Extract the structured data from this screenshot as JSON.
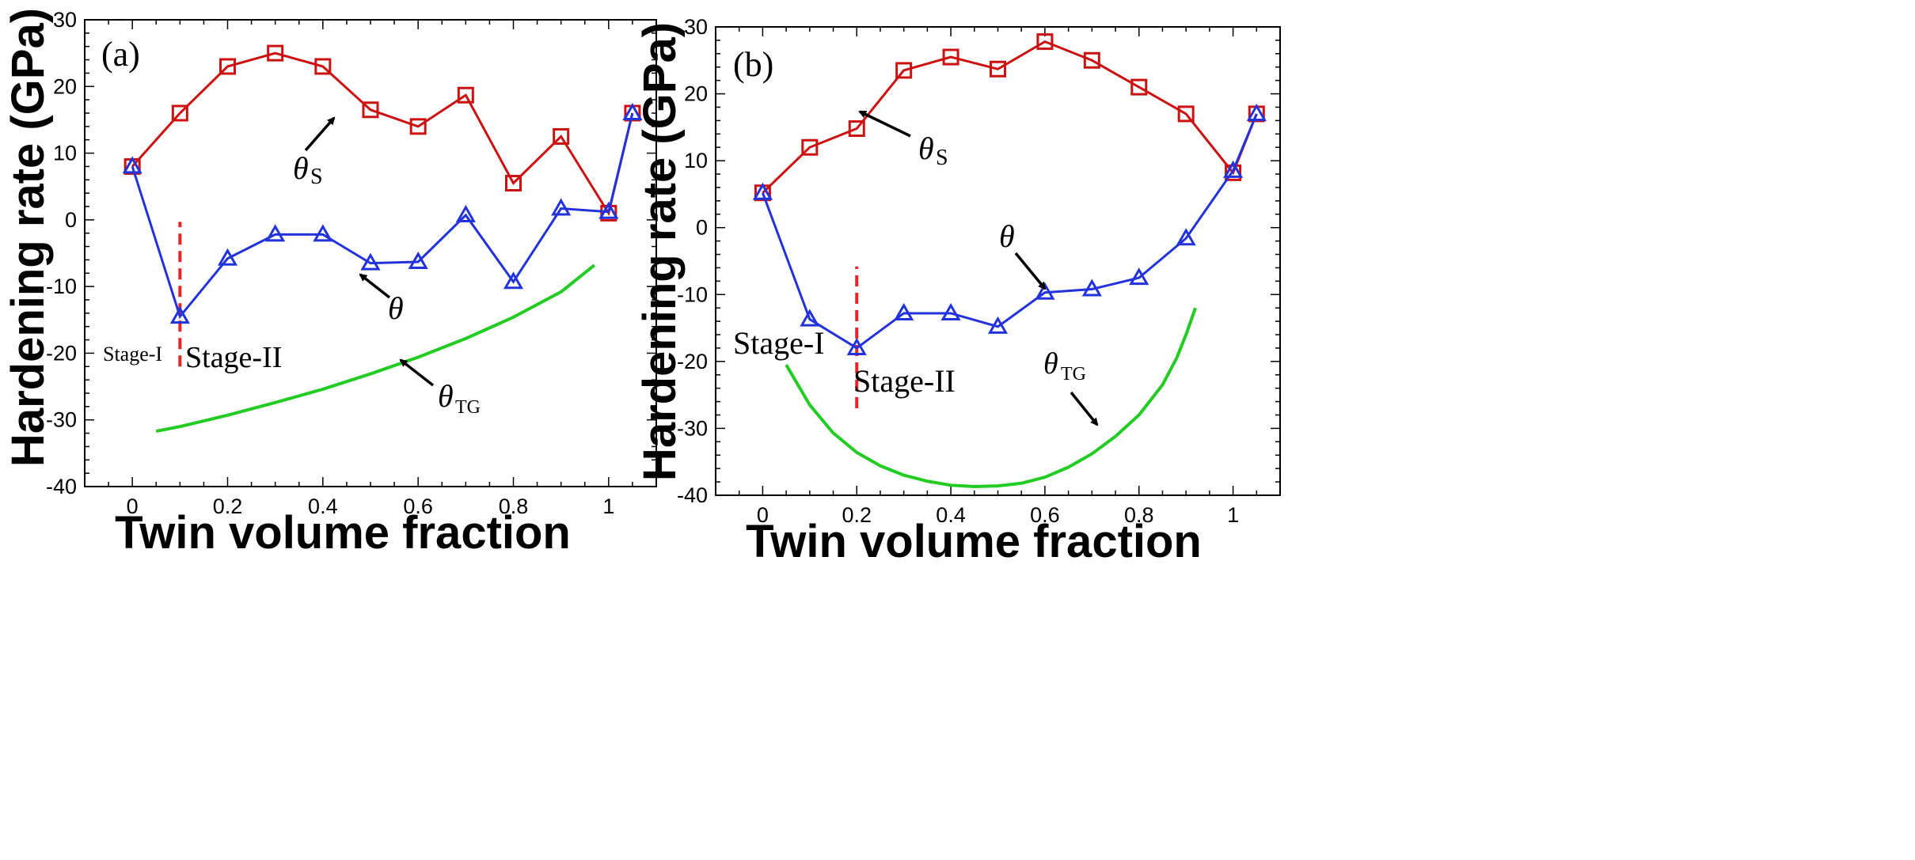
{
  "chart_data": [
    {
      "type": "line",
      "panel_label": "(a)",
      "xlabel": "Twin volume  fraction",
      "ylabel": "Hardening rate (GPa)",
      "xlim": [
        -0.1,
        1.1
      ],
      "ylim": [
        -40,
        30
      ],
      "x_ticks": [
        0,
        0.2,
        0.4,
        0.6,
        0.8,
        1
      ],
      "x_tick_labels": [
        "0",
        "0.2",
        "0.4",
        "0.6",
        "0.8",
        "1"
      ],
      "y_ticks": [
        -40,
        -30,
        -20,
        -10,
        0,
        10,
        20,
        30
      ],
      "y_tick_labels": [
        "-40",
        "-30",
        "-20",
        "-10",
        "0",
        "10",
        "20",
        "30"
      ],
      "series": [
        {
          "name": "θS",
          "color": "#cc1111",
          "marker": "square",
          "x": [
            0,
            0.1,
            0.2,
            0.3,
            0.4,
            0.5,
            0.6,
            0.7,
            0.8,
            0.9,
            1.0,
            1.05
          ],
          "y": [
            8,
            16,
            23,
            25,
            23,
            16.5,
            14,
            18.7,
            5.5,
            12.5,
            1,
            16
          ]
        },
        {
          "name": "θ",
          "color": "#2233dd",
          "marker": "triangle",
          "x": [
            0,
            0.1,
            0.2,
            0.3,
            0.4,
            0.5,
            0.6,
            0.7,
            0.8,
            0.9,
            1.0,
            1.05
          ],
          "y": [
            8,
            -14.5,
            -5.8,
            -2.2,
            -2.2,
            -6.5,
            -6.3,
            0.7,
            -9.3,
            1.7,
            1.2,
            16
          ]
        },
        {
          "name": "θTG",
          "color": "#22cc22",
          "marker": "none",
          "x": [
            0.05,
            0.1,
            0.2,
            0.3,
            0.4,
            0.5,
            0.6,
            0.7,
            0.8,
            0.9,
            0.97
          ],
          "y": [
            -31.7,
            -31,
            -29.3,
            -27.4,
            -25.4,
            -23.1,
            -20.6,
            -17.8,
            -14.6,
            -10.8,
            -6.8
          ]
        }
      ],
      "stage_divider": {
        "x": 0.1,
        "y_range": [
          -22,
          -0.3
        ],
        "color": "#ee2222"
      },
      "annotations": {
        "theta_s": {
          "text": "θ",
          "sub": "S"
        },
        "theta": {
          "text": "θ"
        },
        "theta_tg": {
          "text": "θ",
          "sub": "TG"
        },
        "stage_1": "Stage-I",
        "stage_2": "Stage-II"
      }
    },
    {
      "type": "line",
      "panel_label": "(b)",
      "xlabel": "Twin volume fraction",
      "ylabel": "Hardening rate (GPa)",
      "xlim": [
        -0.1,
        1.1
      ],
      "ylim": [
        -40,
        30
      ],
      "x_ticks": [
        0,
        0.2,
        0.4,
        0.6,
        0.8,
        1
      ],
      "x_tick_labels": [
        "0",
        "0.2",
        "0.4",
        "0.6",
        "0.8",
        "1"
      ],
      "y_ticks": [
        -40,
        -30,
        -20,
        -10,
        0,
        10,
        20,
        30
      ],
      "y_tick_labels": [
        "-40",
        "-30",
        "-20",
        "-10",
        "0",
        "10",
        "20",
        "30"
      ],
      "series": [
        {
          "name": "θS",
          "color": "#cc1111",
          "marker": "square",
          "x": [
            0,
            0.1,
            0.2,
            0.3,
            0.4,
            0.5,
            0.6,
            0.7,
            0.8,
            0.9,
            1.0,
            1.05
          ],
          "y": [
            5.2,
            12,
            14.8,
            23.5,
            25.5,
            23.7,
            27.8,
            25,
            21,
            17,
            8.2,
            17
          ]
        },
        {
          "name": "θ",
          "color": "#2233dd",
          "marker": "triangle",
          "x": [
            0,
            0.1,
            0.2,
            0.3,
            0.4,
            0.5,
            0.6,
            0.7,
            0.8,
            0.9,
            1.0,
            1.05
          ],
          "y": [
            5.2,
            -13.7,
            -18,
            -12.8,
            -12.8,
            -14.8,
            -9.7,
            -9.2,
            -7.5,
            -1.6,
            8.5,
            17
          ]
        },
        {
          "name": "θTG",
          "color": "#22cc22",
          "marker": "none",
          "x": [
            0.05,
            0.1,
            0.15,
            0.2,
            0.25,
            0.3,
            0.35,
            0.4,
            0.45,
            0.5,
            0.55,
            0.6,
            0.65,
            0.7,
            0.75,
            0.8,
            0.85,
            0.88,
            0.9,
            0.92
          ],
          "y": [
            -20.5,
            -26.5,
            -30.7,
            -33.6,
            -35.6,
            -37,
            -37.9,
            -38.5,
            -38.7,
            -38.6,
            -38.2,
            -37.3,
            -35.8,
            -33.8,
            -31.2,
            -28,
            -23.5,
            -19.5,
            -16,
            -12
          ]
        }
      ],
      "stage_divider": {
        "x": 0.2,
        "y_range": [
          -27,
          -5.8
        ],
        "color": "#ee2222"
      },
      "annotations": {
        "theta_s": {
          "text": "θ",
          "sub": "S"
        },
        "theta": {
          "text": "θ"
        },
        "theta_tg": {
          "text": "θ",
          "sub": "TG"
        },
        "stage_1": "Stage-I",
        "stage_2": "Stage-II"
      }
    }
  ]
}
